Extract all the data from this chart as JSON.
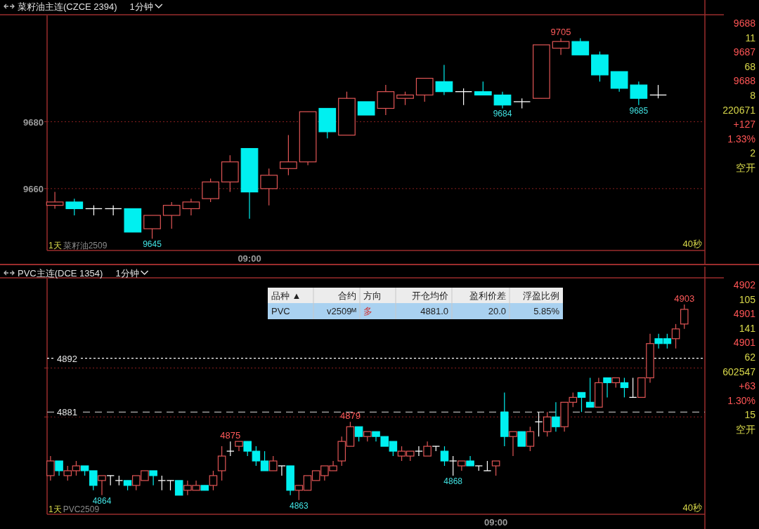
{
  "chart_data": [
    {
      "type": "candlestick",
      "title": "菜籽油主连(CZCE 2394)",
      "subtitle": "1分钟",
      "categories": [
        null,
        null,
        null,
        null,
        null,
        null,
        null,
        null,
        null,
        null,
        "09:00",
        null,
        null,
        null,
        null,
        null,
        null,
        null,
        null,
        null,
        null,
        null,
        null,
        null,
        null,
        null,
        null,
        null,
        null,
        null,
        null,
        null
      ],
      "ohlc": [
        [
          9655,
          9659,
          9654,
          9656
        ],
        [
          9656,
          9657,
          9652,
          9654
        ],
        [
          9654,
          9655,
          9652,
          9654
        ],
        [
          9654,
          9655,
          9652,
          9654
        ],
        [
          9654,
          9654,
          9647,
          9647
        ],
        [
          9648,
          9652,
          9645,
          9652
        ],
        [
          9652,
          9656,
          9648,
          9655
        ],
        [
          9654,
          9657,
          9652,
          9656
        ],
        [
          9657,
          9663,
          9656,
          9662
        ],
        [
          9662,
          9670,
          9659,
          9668
        ],
        [
          9672,
          9672,
          9651,
          9659
        ],
        [
          9660,
          9666,
          9655,
          9664
        ],
        [
          9666,
          9676,
          9664,
          9668
        ],
        [
          9668,
          9683,
          9667,
          9683
        ],
        [
          9684,
          9684,
          9675,
          9677
        ],
        [
          9676,
          9689,
          9676,
          9687
        ],
        [
          9686,
          9686,
          9682,
          9682
        ],
        [
          9684,
          9691,
          9682,
          9689
        ],
        [
          9687,
          9689,
          9685,
          9688
        ],
        [
          9688,
          9693,
          9686,
          9693
        ],
        [
          9692,
          9697,
          9688,
          9689
        ],
        [
          9689,
          9690,
          9685,
          9689
        ],
        [
          9689,
          9692,
          9688,
          9688
        ],
        [
          9688,
          9689,
          9684,
          9685
        ],
        [
          9686,
          9687,
          9684,
          9686
        ],
        [
          9687,
          9703,
          9687,
          9703
        ],
        [
          9702,
          9705,
          9700,
          9704
        ],
        [
          9704,
          9705,
          9700,
          9700
        ],
        [
          9700,
          9701,
          9692,
          9694
        ],
        [
          9695,
          9695,
          9689,
          9690
        ],
        [
          9691,
          9692,
          9685,
          9687
        ],
        [
          9688,
          9691,
          9687,
          9688
        ]
      ],
      "ylim": [
        9641.5,
        9711.8
      ],
      "yticks": [
        9660,
        9680
      ],
      "grid": "y",
      "annotations": [
        "1天",
        "菜籽油2509",
        "40秒",
        {
          "text": "9705",
          "y": 9705
        },
        {
          "text": "9684",
          "y": 9684
        },
        {
          "text": "9685",
          "y": 9685
        },
        {
          "text": "9645",
          "y": 9645
        }
      ]
    },
    {
      "type": "other",
      "annotations": [
        "9688",
        "11",
        "9687",
        "68",
        "9688",
        "8",
        "220671",
        "+127",
        "1.33%",
        "2",
        "空开"
      ]
    },
    {
      "type": "candlestick",
      "title": "PVC主连(DCE 1354)",
      "subtitle": "1分钟",
      "categories": [
        null,
        null,
        null,
        null,
        null,
        null,
        null,
        null,
        null,
        null,
        null,
        null,
        null,
        null,
        null,
        null,
        null,
        null,
        null,
        null,
        null,
        null,
        null,
        null,
        null,
        null,
        null,
        null,
        null,
        null,
        null,
        null,
        null,
        null,
        null,
        null,
        null,
        null,
        null,
        null,
        null,
        null,
        null,
        null,
        null,
        null,
        null,
        null,
        null,
        null,
        null,
        null,
        "09:00",
        null,
        null,
        null,
        null,
        null,
        null,
        null,
        null,
        null,
        null,
        null,
        null,
        null,
        null,
        null,
        null,
        null,
        null,
        null,
        null,
        null,
        null
      ],
      "ohlc": [
        [
          4868,
          4872,
          4867,
          4871
        ],
        [
          4871,
          4871,
          4868,
          4869
        ],
        [
          4868,
          4870,
          4867,
          4869
        ],
        [
          4869,
          4871,
          4868,
          4870
        ],
        [
          4870,
          4870,
          4868,
          4869
        ],
        [
          4869,
          4869,
          4865,
          4866
        ],
        [
          4867,
          4868,
          4864,
          4868
        ],
        [
          4868,
          4868,
          4866,
          4868
        ],
        [
          4867,
          4868,
          4866,
          4867
        ],
        [
          4867,
          4867,
          4865,
          4866
        ],
        [
          4866,
          4868,
          4865,
          4868
        ],
        [
          4867,
          4869,
          4867,
          4869
        ],
        [
          4869,
          4869,
          4866,
          4868
        ],
        [
          4867,
          4868,
          4865,
          4867
        ],
        [
          4867,
          4867,
          4865,
          4867
        ],
        [
          4867,
          4867,
          4864,
          4864
        ],
        [
          4865,
          4867,
          4864,
          4866
        ],
        [
          4865,
          4867,
          4865,
          4866
        ],
        [
          4866,
          4866,
          4865,
          4865
        ],
        [
          4866,
          4869,
          4865,
          4868
        ],
        [
          4869,
          4874,
          4867,
          4872
        ],
        [
          4873,
          4875,
          4872,
          4873
        ],
        [
          4874,
          4875,
          4873,
          4875
        ],
        [
          4875,
          4875,
          4872,
          4873
        ],
        [
          4873,
          4874,
          4870,
          4871
        ],
        [
          4871,
          4873,
          4869,
          4869
        ],
        [
          4869,
          4872,
          4869,
          4871
        ],
        [
          4870,
          4870,
          4868,
          4870
        ],
        [
          4870,
          4870,
          4864,
          4865
        ],
        [
          4865,
          4866,
          4863,
          4866
        ],
        [
          4865,
          4868,
          4865,
          4868
        ],
        [
          4867,
          4869,
          4867,
          4869
        ],
        [
          4868,
          4870,
          4867,
          4870
        ],
        [
          4869,
          4871,
          4869,
          4870
        ],
        [
          4871,
          4876,
          4870,
          4875
        ],
        [
          4874,
          4879,
          4874,
          4878
        ],
        [
          4878,
          4878,
          4875,
          4876
        ],
        [
          4876,
          4877,
          4875,
          4877
        ],
        [
          4877,
          4877,
          4875,
          4876
        ],
        [
          4876,
          4876,
          4874,
          4874
        ],
        [
          4875,
          4875,
          4872,
          4873
        ],
        [
          4872,
          4874,
          4871,
          4873
        ],
        [
          4872,
          4873,
          4871,
          4873
        ],
        [
          4873,
          4874,
          4872,
          4873
        ],
        [
          4872,
          4875,
          4872,
          4874
        ],
        [
          4874,
          4874,
          4873,
          4874
        ],
        [
          4873,
          4874,
          4870,
          4871
        ],
        [
          4871,
          4872,
          4868,
          4871
        ],
        [
          4870,
          4871,
          4869,
          4871
        ],
        [
          4871,
          4872,
          4870,
          4870
        ],
        [
          4870,
          4870,
          4869,
          4870
        ],
        [
          4869,
          4871,
          4869,
          4869
        ],
        [
          4870,
          4871,
          4868,
          4871
        ],
        [
          4881,
          4885,
          4874,
          4876
        ],
        [
          4876,
          4877,
          4872,
          4877
        ],
        [
          4877,
          4877,
          4874,
          4874
        ],
        [
          4874,
          4878,
          4873,
          4877
        ],
        [
          4879,
          4881,
          4876,
          4879
        ],
        [
          4877,
          4881,
          4876,
          4880
        ],
        [
          4880,
          4883,
          4877,
          4878
        ],
        [
          4878,
          4883,
          4877,
          4883
        ],
        [
          4883,
          4885,
          4882,
          4884
        ],
        [
          4885,
          4885,
          4881,
          4884
        ],
        [
          4883,
          4888,
          4882,
          4882
        ],
        [
          4882,
          4888,
          4882,
          4887
        ],
        [
          4888,
          4888,
          4884,
          4887
        ],
        [
          4887,
          4888,
          4886,
          4888
        ],
        [
          4887,
          4888,
          4884,
          4886
        ],
        [
          4884,
          4888,
          4884,
          4884
        ],
        [
          4884,
          4888,
          4884,
          4888
        ],
        [
          4888,
          4897,
          4887,
          4895
        ],
        [
          4896,
          4897,
          4894,
          4895
        ],
        [
          4896,
          4897,
          4894,
          4895
        ],
        [
          4896,
          4899,
          4894,
          4898
        ],
        [
          4899,
          4903,
          4898,
          4902
        ]
      ],
      "ylim": [
        4860.1,
        4908.3
      ],
      "yticks": [
        {
          "value": 4880,
          "label": null
        },
        {
          "value": 4890,
          "label": null
        }
      ],
      "grid": "y",
      "ref_lines": [
        {
          "axis": "y",
          "value": 4892,
          "label": "4892",
          "color": "#ffffff",
          "line_style": "dotted"
        },
        {
          "axis": "y",
          "value": 4881,
          "label": "4881",
          "color": "#b0b0b0",
          "line_style": "dashed"
        }
      ],
      "annotations": [
        "1天",
        "PVC2509",
        "40秒",
        {
          "text": "4875",
          "y": 4875
        },
        {
          "text": "4879",
          "y": 4879
        },
        {
          "text": "4903",
          "y": 4903
        },
        {
          "text": "4864",
          "y": 4864
        },
        {
          "text": "4863",
          "y": 4863
        },
        {
          "text": "4868",
          "y": 4868
        }
      ]
    },
    {
      "type": "other",
      "annotations": [
        "品种 ▲",
        "合约",
        "方向",
        "开仓均价",
        "盈利价差",
        "浮盈比例",
        "PVC",
        "v2509ᴹ",
        "多",
        "4881.0",
        "20.0",
        "5.85%"
      ]
    },
    {
      "type": "other",
      "annotations": [
        "4902",
        "105",
        "4901",
        "141",
        "4901",
        "62",
        "602547",
        "+63",
        "1.30%",
        "15",
        "空开"
      ]
    }
  ]
}
